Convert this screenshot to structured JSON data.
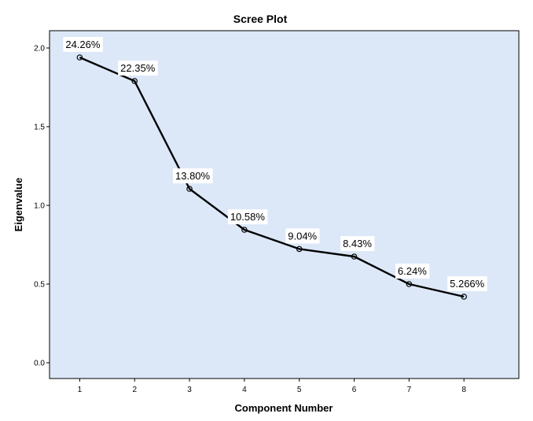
{
  "chart_data": {
    "type": "line",
    "title": "Scree Plot",
    "xlabel": "Component Number",
    "ylabel": "Eigenvalue",
    "x": [
      1,
      2,
      3,
      4,
      5,
      6,
      7,
      8
    ],
    "y": [
      1.94,
      1.79,
      1.105,
      0.845,
      0.723,
      0.675,
      0.5,
      0.42
    ],
    "labels": [
      "24.26%",
      "22.35%",
      "13.80%",
      "10.58%",
      "9.04%",
      "8.43%",
      "6.24%",
      "5.266%"
    ],
    "xlim": [
      0.45,
      9.0
    ],
    "ylim": [
      -0.1,
      2.11
    ],
    "yticks": [
      0.0,
      0.5,
      1.0,
      1.5,
      2.0
    ],
    "ytick_labels": [
      "0.0",
      "0.5",
      "1.0",
      "1.5",
      "2.0"
    ],
    "xticks": [
      1,
      2,
      3,
      4,
      5,
      6,
      7,
      8
    ],
    "xtick_labels": [
      "1",
      "2",
      "3",
      "4",
      "5",
      "6",
      "7",
      "8"
    ],
    "grid": false,
    "legend": "none",
    "colors": {
      "plot_background": "#dce8f8",
      "line": "#000000",
      "frame": "#000000",
      "label_background": "#ffffff"
    }
  }
}
